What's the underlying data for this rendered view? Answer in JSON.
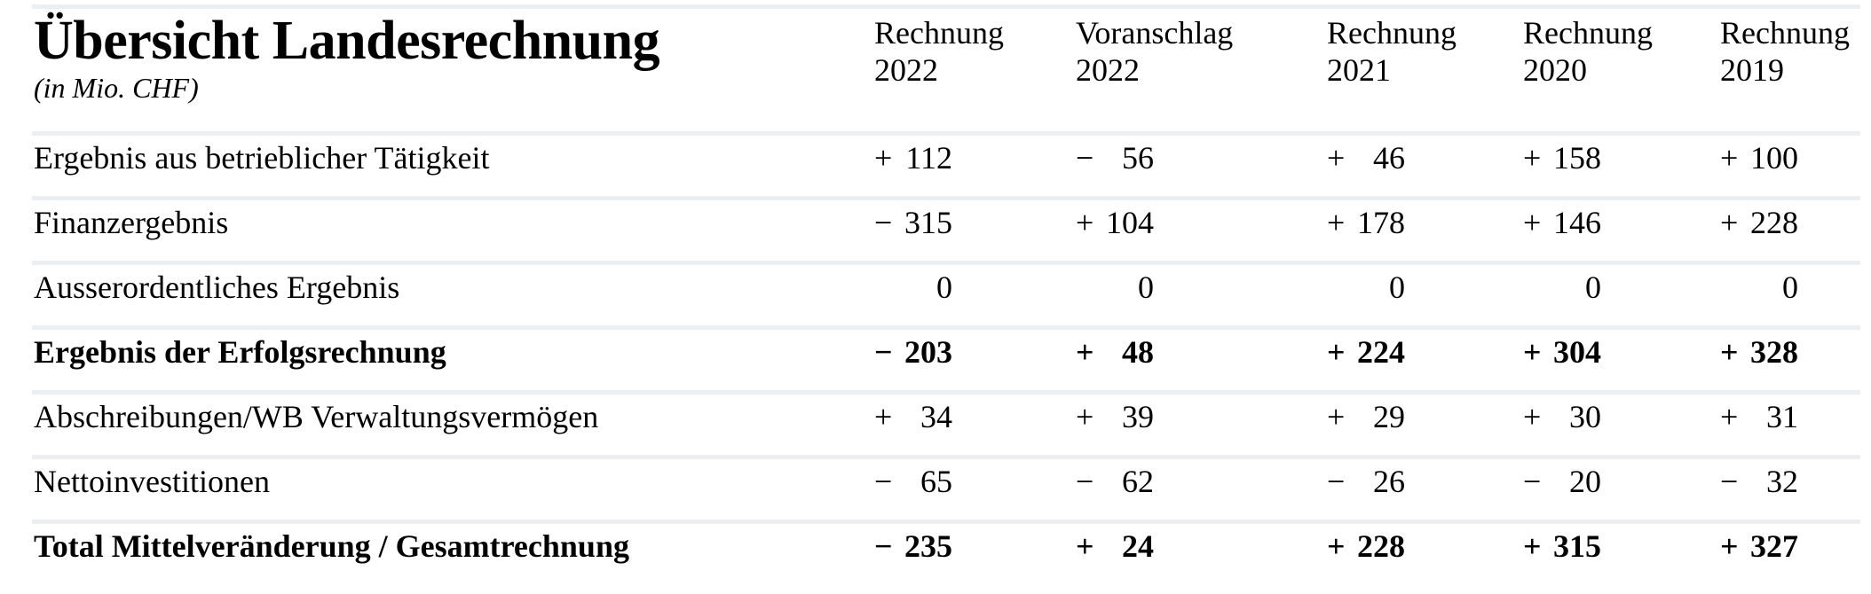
{
  "table": {
    "title": "Übersicht Landesrechnung",
    "subtitle": "(in Mio. CHF)",
    "columns": [
      {
        "line1": "Rechnung",
        "line2": "2022"
      },
      {
        "line1": "Voranschlag",
        "line2": "2022"
      },
      {
        "line1": "Rechnung",
        "line2": "2021"
      },
      {
        "line1": "Rechnung",
        "line2": "2020"
      },
      {
        "line1": "Rechnung",
        "line2": "2019"
      }
    ],
    "rows": [
      {
        "label": "Ergebnis aus betrieblicher Tätigkeit",
        "bold": false,
        "values": [
          {
            "sign": "+",
            "num": "112"
          },
          {
            "sign": "−",
            "num": "56"
          },
          {
            "sign": "+",
            "num": "46"
          },
          {
            "sign": "+",
            "num": "158"
          },
          {
            "sign": "+",
            "num": "100"
          }
        ]
      },
      {
        "label": "Finanzergebnis",
        "bold": false,
        "values": [
          {
            "sign": "−",
            "num": "315"
          },
          {
            "sign": "+",
            "num": "104"
          },
          {
            "sign": "+",
            "num": "178"
          },
          {
            "sign": "+",
            "num": "146"
          },
          {
            "sign": "+",
            "num": "228"
          }
        ]
      },
      {
        "label": "Ausserordentliches Ergebnis",
        "bold": false,
        "values": [
          {
            "sign": "",
            "num": "0"
          },
          {
            "sign": "",
            "num": "0"
          },
          {
            "sign": "",
            "num": "0"
          },
          {
            "sign": "",
            "num": "0"
          },
          {
            "sign": "",
            "num": "0"
          }
        ]
      },
      {
        "label": "Ergebnis der Erfolgsrechnung",
        "bold": true,
        "values": [
          {
            "sign": "−",
            "num": "203"
          },
          {
            "sign": "+",
            "num": "48"
          },
          {
            "sign": "+",
            "num": "224"
          },
          {
            "sign": "+",
            "num": "304"
          },
          {
            "sign": "+",
            "num": "328"
          }
        ]
      },
      {
        "label": "Abschreibungen/WB Verwaltungsvermögen",
        "bold": false,
        "values": [
          {
            "sign": "+",
            "num": "34"
          },
          {
            "sign": "+",
            "num": "39"
          },
          {
            "sign": "+",
            "num": "29"
          },
          {
            "sign": "+",
            "num": "30"
          },
          {
            "sign": "+",
            "num": "31"
          }
        ]
      },
      {
        "label": "Nettoinvestitionen",
        "bold": false,
        "values": [
          {
            "sign": "−",
            "num": "65"
          },
          {
            "sign": "−",
            "num": "62"
          },
          {
            "sign": "−",
            "num": "26"
          },
          {
            "sign": "−",
            "num": "20"
          },
          {
            "sign": "−",
            "num": "32"
          }
        ]
      },
      {
        "label": "Total Mittelveränderung / Gesamtrechnung",
        "bold": true,
        "values": [
          {
            "sign": "−",
            "num": "235"
          },
          {
            "sign": "+",
            "num": "24"
          },
          {
            "sign": "+",
            "num": "228"
          },
          {
            "sign": "+",
            "num": "315"
          },
          {
            "sign": "+",
            "num": "327"
          }
        ]
      }
    ]
  },
  "colors": {
    "divider": "#ebeff2",
    "text": "#000000",
    "background": "#ffffff"
  }
}
